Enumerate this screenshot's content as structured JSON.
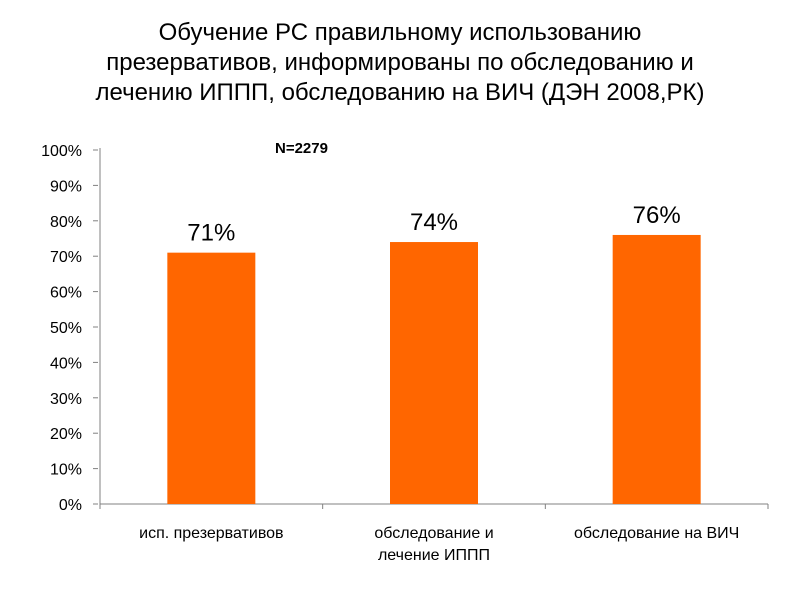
{
  "chart_data": {
    "type": "bar",
    "title": "Обучение РС правильному использованию\nпрезервативов, информированы по обследованию и\nлечению ИППП, обследованию на ВИЧ (ДЭН 2008,РК)",
    "annotation": "N=2279",
    "categories": [
      [
        "исп. презервативов"
      ],
      [
        "обследование и",
        "лечение ИППП"
      ],
      [
        "обследование на ВИЧ"
      ]
    ],
    "values": [
      71,
      74,
      76
    ],
    "data_labels": [
      "71%",
      "74%",
      "76%"
    ],
    "yticks": [
      "0%",
      "10%",
      "20%",
      "30%",
      "40%",
      "50%",
      "60%",
      "70%",
      "80%",
      "90%",
      "100%"
    ],
    "ylim": [
      0,
      100
    ],
    "bar_color": "#FF6600",
    "grid": false,
    "legend": "none"
  }
}
